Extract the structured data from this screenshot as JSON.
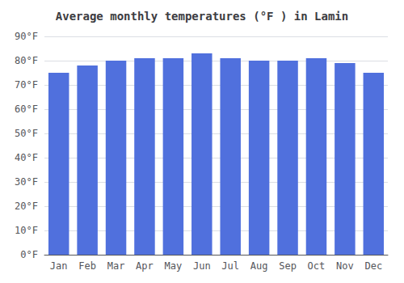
{
  "chart_data": {
    "type": "bar",
    "title": "Average monthly temperatures (°F ) in Lamin",
    "categories": [
      "Jan",
      "Feb",
      "Mar",
      "Apr",
      "May",
      "Jun",
      "Jul",
      "Aug",
      "Sep",
      "Oct",
      "Nov",
      "Dec"
    ],
    "values": [
      75,
      78,
      80,
      81,
      81,
      83,
      81,
      80,
      80,
      81,
      79,
      75
    ],
    "ylim": [
      0,
      90
    ],
    "yticks": [
      {
        "value": 0,
        "label": "0°F"
      },
      {
        "value": 10,
        "label": "10°F"
      },
      {
        "value": 20,
        "label": "20°F"
      },
      {
        "value": 30,
        "label": "30°F"
      },
      {
        "value": 40,
        "label": "40°F"
      },
      {
        "value": 50,
        "label": "50°F"
      },
      {
        "value": 60,
        "label": "60°F"
      },
      {
        "value": 70,
        "label": "70°F"
      },
      {
        "value": 80,
        "label": "80°F"
      },
      {
        "value": 90,
        "label": "90°F"
      }
    ],
    "grid": true
  }
}
